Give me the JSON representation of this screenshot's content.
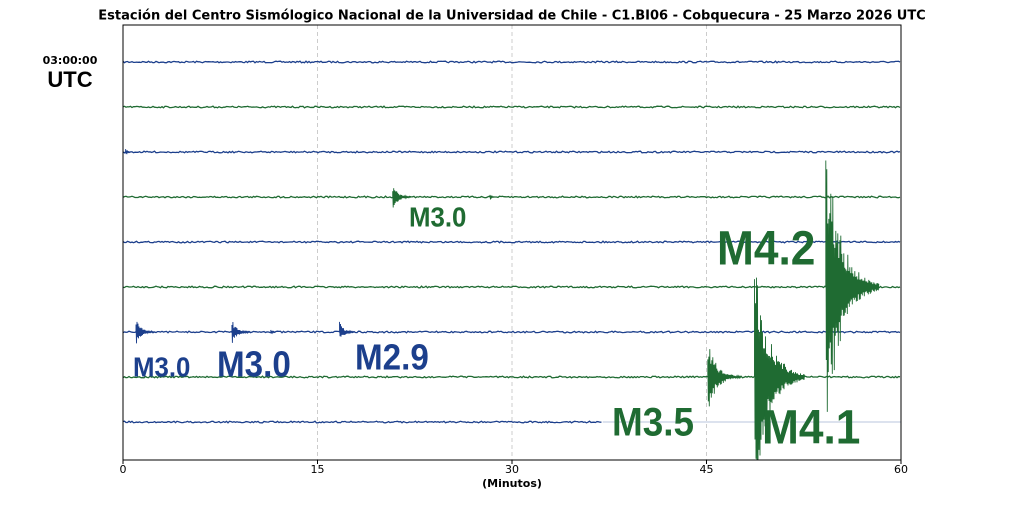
{
  "chart_data": {
    "type": "helicorder",
    "title": "Estación del Centro Sismólogico Nacional de la Universidad de Chile - C1.BI06 - Cobquecura - 25 Marzo 2026 UTC",
    "time_label": "03:00:00",
    "timezone": "UTC",
    "xlabel": "(Minutos)",
    "xlim": [
      0,
      60
    ],
    "xticks": [
      0,
      15,
      30,
      45,
      60
    ],
    "grid": true,
    "traces": [
      {
        "color": "#1c3f8c"
      },
      {
        "color": "#1f6b32"
      },
      {
        "color": "#1c3f8c"
      },
      {
        "color": "#1f6b32"
      },
      {
        "color": "#1c3f8c"
      },
      {
        "color": "#1f6b32"
      },
      {
        "color": "#1c3f8c"
      },
      {
        "color": "#1f6b32"
      },
      {
        "color": "#1c3f8c",
        "end_minute": 37
      }
    ],
    "events": [
      {
        "trace": 2,
        "minute": 0.2
      },
      {
        "trace": 3,
        "minute": 20.8,
        "label": "M3.0",
        "magnitude": 3.0
      },
      {
        "trace": 3,
        "minute": 28.3
      },
      {
        "trace": 6,
        "minute": 1.0,
        "label": "M3.0",
        "magnitude": 3.0
      },
      {
        "trace": 6,
        "minute": 8.4,
        "label": "M3.0",
        "magnitude": 3.0
      },
      {
        "trace": 6,
        "minute": 11.4
      },
      {
        "trace": 6,
        "minute": 16.7,
        "label": "M2.9",
        "magnitude": 2.9
      },
      {
        "trace": 7,
        "minute": 45.1,
        "label": "M3.5",
        "magnitude": 3.5
      },
      {
        "trace": 7,
        "minute": 48.7,
        "label": "M4.1",
        "magnitude": 4.1
      },
      {
        "trace": 5,
        "minute": 54.2,
        "label": "M4.2",
        "magnitude": 4.2
      }
    ]
  }
}
